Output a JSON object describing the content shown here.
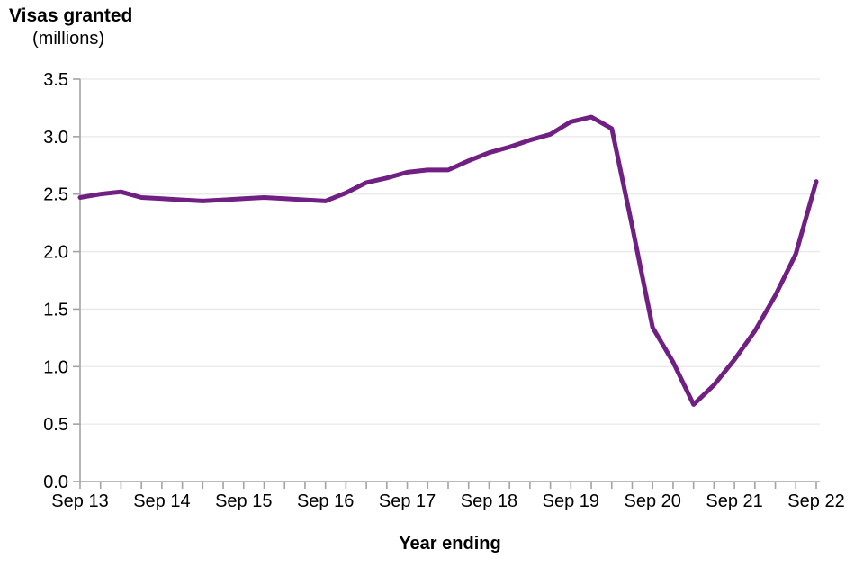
{
  "title": "Visas granted",
  "subtitle": "(millions)",
  "x_axis_title": "Year ending",
  "colors": {
    "line": "#702082",
    "gridline": "#e8e8e8",
    "axis": "#a3a3a3",
    "text": "#000000",
    "background": "#ffffff"
  },
  "chart_data": {
    "type": "line",
    "title": "Visas granted",
    "subtitle": "(millions)",
    "xlabel": "Year ending",
    "ylabel": "",
    "ylim": [
      0,
      3.5
    ],
    "ytick_step": 0.5,
    "ytick_labels": [
      "0.0",
      "0.5",
      "1.0",
      "1.5",
      "2.0",
      "2.5",
      "3.0",
      "3.5"
    ],
    "grid": "horizontal",
    "legend": "none",
    "x_label_every": 4,
    "x": [
      "Sep 13",
      "Dec 13",
      "Mar 14",
      "Jun 14",
      "Sep 14",
      "Dec 14",
      "Mar 15",
      "Jun 15",
      "Sep 15",
      "Dec 15",
      "Mar 16",
      "Jun 16",
      "Sep 16",
      "Dec 16",
      "Mar 17",
      "Jun 17",
      "Sep 17",
      "Dec 17",
      "Mar 18",
      "Jun 18",
      "Sep 18",
      "Dec 18",
      "Mar 19",
      "Jun 19",
      "Sep 19",
      "Dec 19",
      "Mar 20",
      "Jun 20",
      "Sep 20",
      "Dec 20",
      "Mar 21",
      "Jun 21",
      "Sep 21",
      "Dec 21",
      "Mar 22",
      "Jun 22",
      "Sep 22"
    ],
    "x_shown_tick_labels": [
      "Sep 13",
      "Sep 14",
      "Sep 15",
      "Sep 16",
      "Sep 17",
      "Sep 18",
      "Sep 19",
      "Sep 20",
      "Sep 21",
      "Sep 22"
    ],
    "series": [
      {
        "name": "Visas granted (millions)",
        "color": "#702082",
        "values": [
          2.47,
          2.5,
          2.52,
          2.47,
          2.46,
          2.45,
          2.44,
          2.45,
          2.46,
          2.47,
          2.46,
          2.45,
          2.44,
          2.51,
          2.6,
          2.64,
          2.69,
          2.71,
          2.71,
          2.79,
          2.86,
          2.91,
          2.97,
          3.02,
          3.13,
          3.17,
          3.07,
          2.22,
          1.34,
          1.04,
          0.67,
          0.84,
          1.06,
          1.31,
          1.62,
          1.98,
          2.61
        ]
      }
    ]
  }
}
